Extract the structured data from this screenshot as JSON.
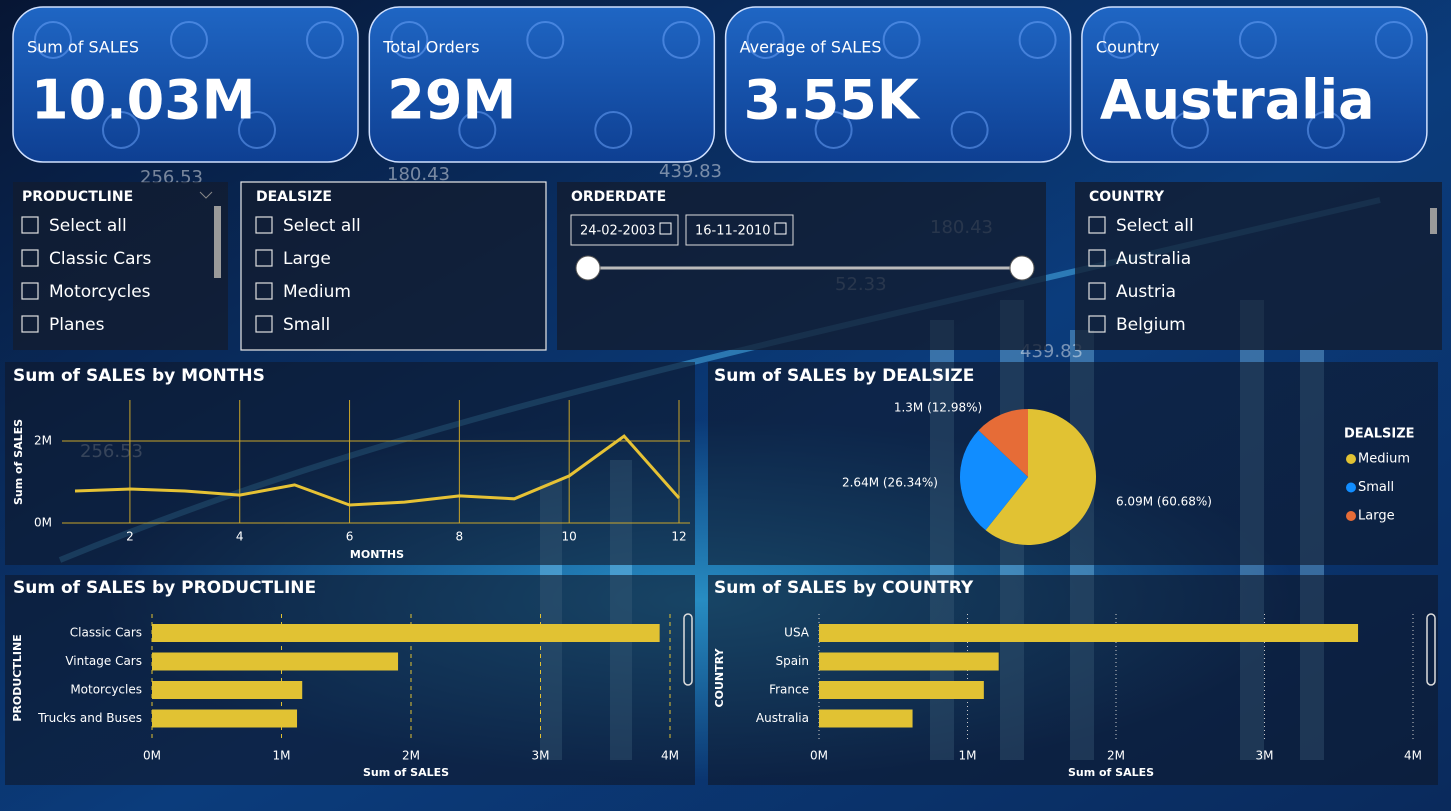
{
  "cards": [
    {
      "label": "Sum of SALES",
      "value": "10.03M"
    },
    {
      "label": "Total Orders",
      "value": "29M"
    },
    {
      "label": "Average of SALES",
      "value": "3.55K"
    },
    {
      "label": "Country",
      "value": "Australia"
    }
  ],
  "background_labels": [
    "256.53",
    "180.43",
    "439.83",
    "180.43",
    "52.33",
    "439.83",
    "256.53"
  ],
  "slicers": {
    "productline": {
      "title": "PRODUCTLINE",
      "items": [
        "Select all",
        "Classic Cars",
        "Motorcycles",
        "Planes"
      ]
    },
    "dealsize": {
      "title": "DEALSIZE",
      "items": [
        "Select all",
        "Large",
        "Medium",
        "Small"
      ]
    },
    "orderdate": {
      "title": "ORDERDATE",
      "start": "24-02-2003",
      "end": "16-11-2010"
    },
    "country": {
      "title": "COUNTRY",
      "items": [
        "Select all",
        "Australia",
        "Austria",
        "Belgium"
      ]
    }
  },
  "chart_data": [
    {
      "type": "line",
      "title": "Sum of SALES by MONTHS",
      "x_label": "MONTHS",
      "y_label": "Sum of SALES",
      "x": [
        1,
        2,
        3,
        4,
        5,
        6,
        7,
        8,
        9,
        10,
        11,
        12
      ],
      "values": [
        780000,
        830000,
        780000,
        680000,
        930000,
        440000,
        510000,
        660000,
        590000,
        1150000,
        2120000,
        610000
      ],
      "color": "#e6c235",
      "xlim": [
        1,
        12
      ],
      "xticks": [
        2,
        4,
        6,
        8,
        10,
        12
      ],
      "ylim": [
        0,
        3000000
      ],
      "yticks": [
        {
          "value": 0,
          "label": "0M"
        },
        {
          "value": 2000000,
          "label": "2M"
        }
      ],
      "grid": true
    },
    {
      "type": "pie",
      "title": "Sum of SALES by DEALSIZE",
      "legend_title": "DEALSIZE",
      "categories": [
        "Medium",
        "Small",
        "Large"
      ],
      "values": [
        6090000,
        2640000,
        1300000
      ],
      "value_labels": [
        "6.09M (60.68%)",
        "2.64M (26.34%)",
        "1.3M (12.98%)"
      ],
      "colors": [
        "#e1c233",
        "#118dff",
        "#e66c37"
      ],
      "legend": "right"
    },
    {
      "type": "bar",
      "orientation": "horizontal",
      "title": "Sum of SALES by PRODUCTLINE",
      "x_label": "Sum of SALES",
      "y_label": "PRODUCTLINE",
      "categories": [
        "Classic Cars",
        "Vintage Cars",
        "Motorcycles",
        "Trucks and Buses"
      ],
      "values": [
        3920000,
        1900000,
        1160000,
        1120000
      ],
      "color": "#e1c233",
      "xlim": [
        0,
        4000000
      ],
      "xticks": [
        {
          "value": 0,
          "label": "0M"
        },
        {
          "value": 1000000,
          "label": "1M"
        },
        {
          "value": 2000000,
          "label": "2M"
        },
        {
          "value": 3000000,
          "label": "3M"
        },
        {
          "value": 4000000,
          "label": "4M"
        }
      ],
      "grid": true
    },
    {
      "type": "bar",
      "orientation": "horizontal",
      "title": "Sum of SALES by COUNTRY",
      "x_label": "Sum of SALES",
      "y_label": "COUNTRY",
      "categories": [
        "USA",
        "Spain",
        "France",
        "Australia"
      ],
      "values": [
        3630000,
        1210000,
        1110000,
        630000
      ],
      "color": "#e1c233",
      "xlim": [
        0,
        4000000
      ],
      "xticks": [
        {
          "value": 0,
          "label": "0M"
        },
        {
          "value": 1000000,
          "label": "1M"
        },
        {
          "value": 2000000,
          "label": "2M"
        },
        {
          "value": 3000000,
          "label": "3M"
        },
        {
          "value": 4000000,
          "label": "4M"
        }
      ],
      "grid": true
    }
  ]
}
